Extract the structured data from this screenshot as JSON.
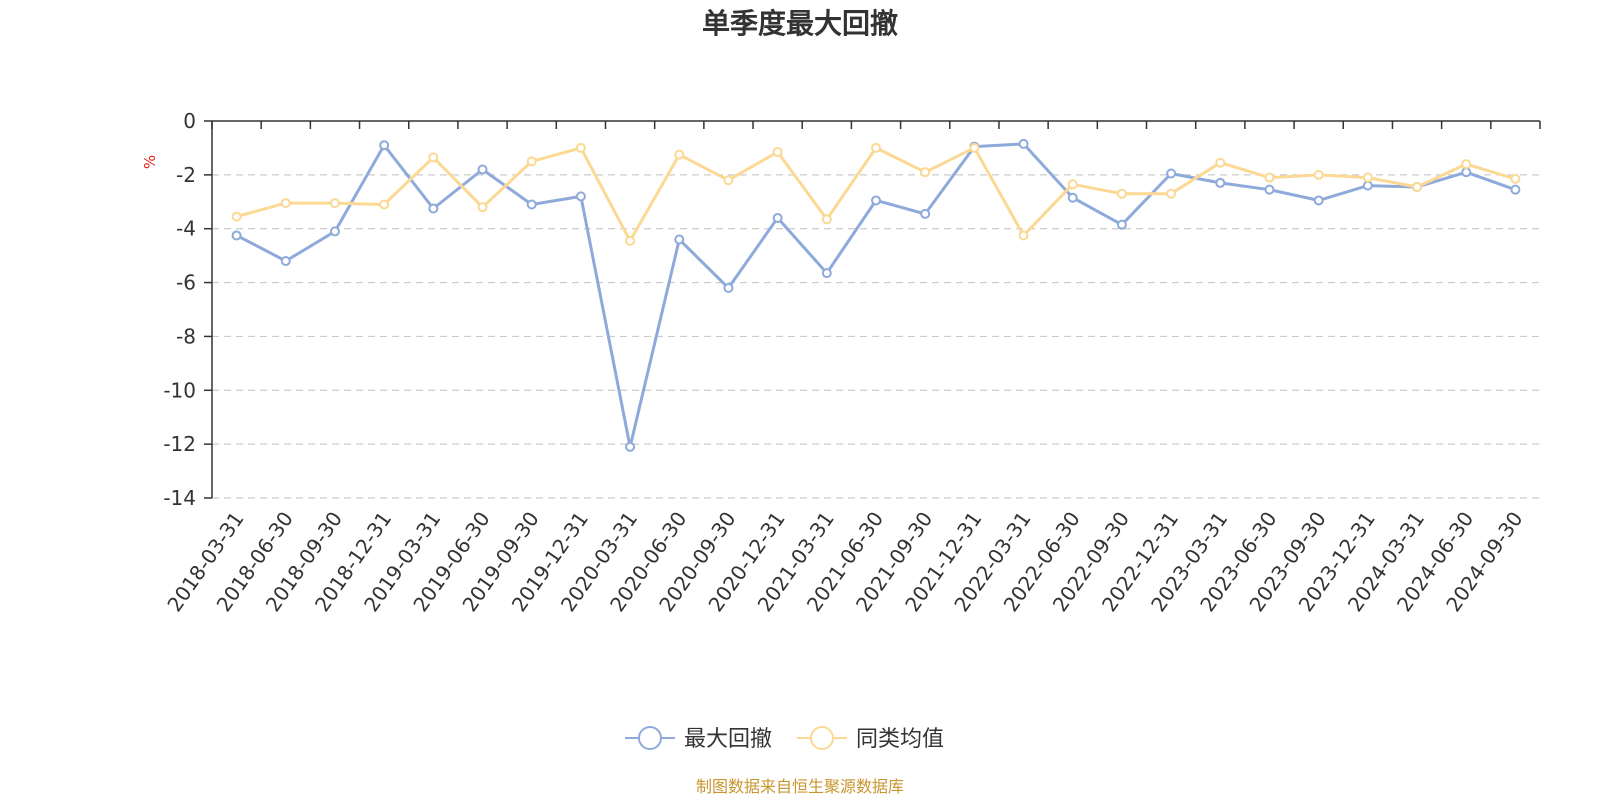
{
  "chart_data": {
    "type": "line",
    "title": "单季度最大回撤",
    "ylabel": "%",
    "ylim": [
      -14,
      0
    ],
    "yticks": [
      0,
      -2,
      -4,
      -6,
      -8,
      -10,
      -12,
      -14
    ],
    "grid": true,
    "legend_position": "bottom-center",
    "categories": [
      "2018-03-31",
      "2018-06-30",
      "2018-09-30",
      "2018-12-31",
      "2019-03-31",
      "2019-06-30",
      "2019-09-30",
      "2019-12-31",
      "2020-03-31",
      "2020-06-30",
      "2020-09-30",
      "2020-12-31",
      "2021-03-31",
      "2021-06-30",
      "2021-09-30",
      "2021-12-31",
      "2022-03-31",
      "2022-06-30",
      "2022-09-30",
      "2022-12-31",
      "2023-03-31",
      "2023-06-30",
      "2023-09-30",
      "2023-12-31",
      "2024-03-31",
      "2024-06-30",
      "2024-09-30"
    ],
    "series": [
      {
        "name": "最大回撤",
        "color": "#8eaadb",
        "values": [
          -4.25,
          -5.2,
          -4.1,
          -0.9,
          -3.25,
          -1.8,
          -3.1,
          -2.8,
          -12.1,
          -4.4,
          -6.2,
          -3.6,
          -5.65,
          -2.95,
          -3.45,
          -0.95,
          -0.85,
          -2.85,
          -3.85,
          -1.95,
          -2.3,
          -2.55,
          -2.95,
          -2.4,
          -2.45,
          -1.9,
          -2.55
        ]
      },
      {
        "name": "同类均值",
        "color": "#fbd994",
        "values": [
          -3.55,
          -3.05,
          -3.05,
          -3.1,
          -1.35,
          -3.2,
          -1.5,
          -1.0,
          -4.45,
          -1.25,
          -2.2,
          -1.15,
          -3.65,
          -1.0,
          -1.9,
          -1.0,
          -4.25,
          -2.35,
          -2.7,
          -2.7,
          -1.55,
          -2.1,
          -2.0,
          -2.1,
          -2.45,
          -1.6,
          -2.15
        ]
      }
    ]
  },
  "footer": {
    "source": "制图数据来自恒生聚源数据库"
  }
}
